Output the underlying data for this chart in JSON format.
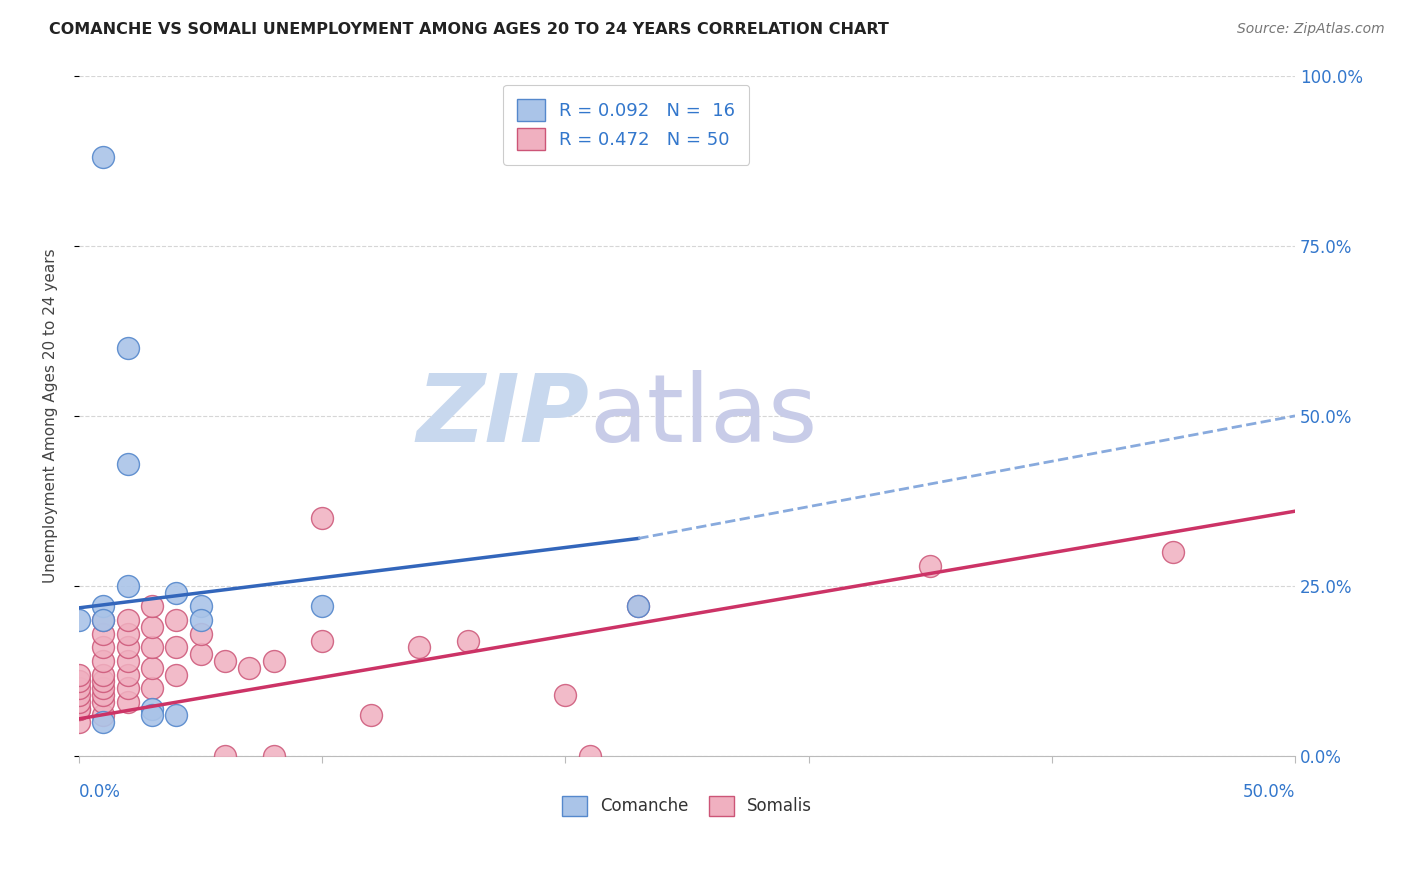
{
  "title": "COMANCHE VS SOMALI UNEMPLOYMENT AMONG AGES 20 TO 24 YEARS CORRELATION CHART",
  "source": "Source: ZipAtlas.com",
  "ylabel": "Unemployment Among Ages 20 to 24 years",
  "xlim": [
    0.0,
    0.5
  ],
  "ylim": [
    0.0,
    1.0
  ],
  "yticks": [
    0.0,
    0.25,
    0.5,
    0.75,
    1.0
  ],
  "ytick_labels": [
    "0.0%",
    "25.0%",
    "50.0%",
    "75.0%",
    "100.0%"
  ],
  "xticks": [
    0.0,
    0.1,
    0.2,
    0.3,
    0.4,
    0.5
  ],
  "legend_comanche_R": "R = 0.092",
  "legend_comanche_N": "N =  16",
  "legend_somali_R": "R = 0.472",
  "legend_somali_N": "N = 50",
  "comanche_color": "#aac4e8",
  "comanche_edge_color": "#5588cc",
  "somali_color": "#f0b0c0",
  "somali_edge_color": "#cc5577",
  "trend_comanche_solid_color": "#3366bb",
  "trend_comanche_dash_color": "#88aadd",
  "trend_somali_color": "#cc3366",
  "watermark_zip_color": "#c8d8ee",
  "watermark_atlas_color": "#c8cce8",
  "right_axis_color": "#3377cc",
  "comanche_points": [
    [
      0.01,
      0.88
    ],
    [
      0.02,
      0.6
    ],
    [
      0.02,
      0.43
    ],
    [
      0.0,
      0.2
    ],
    [
      0.01,
      0.22
    ],
    [
      0.01,
      0.2
    ],
    [
      0.02,
      0.25
    ],
    [
      0.01,
      0.05
    ],
    [
      0.03,
      0.07
    ],
    [
      0.03,
      0.06
    ],
    [
      0.04,
      0.06
    ],
    [
      0.04,
      0.24
    ],
    [
      0.05,
      0.22
    ],
    [
      0.05,
      0.2
    ],
    [
      0.1,
      0.22
    ],
    [
      0.23,
      0.22
    ]
  ],
  "somali_points": [
    [
      0.0,
      0.05
    ],
    [
      0.0,
      0.07
    ],
    [
      0.0,
      0.07
    ],
    [
      0.0,
      0.08
    ],
    [
      0.0,
      0.09
    ],
    [
      0.0,
      0.1
    ],
    [
      0.0,
      0.11
    ],
    [
      0.0,
      0.12
    ],
    [
      0.01,
      0.06
    ],
    [
      0.01,
      0.08
    ],
    [
      0.01,
      0.09
    ],
    [
      0.01,
      0.1
    ],
    [
      0.01,
      0.11
    ],
    [
      0.01,
      0.12
    ],
    [
      0.01,
      0.14
    ],
    [
      0.01,
      0.16
    ],
    [
      0.01,
      0.18
    ],
    [
      0.01,
      0.2
    ],
    [
      0.02,
      0.08
    ],
    [
      0.02,
      0.1
    ],
    [
      0.02,
      0.12
    ],
    [
      0.02,
      0.14
    ],
    [
      0.02,
      0.16
    ],
    [
      0.02,
      0.18
    ],
    [
      0.02,
      0.2
    ],
    [
      0.03,
      0.1
    ],
    [
      0.03,
      0.13
    ],
    [
      0.03,
      0.16
    ],
    [
      0.03,
      0.19
    ],
    [
      0.03,
      0.22
    ],
    [
      0.04,
      0.12
    ],
    [
      0.04,
      0.16
    ],
    [
      0.04,
      0.2
    ],
    [
      0.05,
      0.15
    ],
    [
      0.05,
      0.18
    ],
    [
      0.06,
      0.0
    ],
    [
      0.06,
      0.14
    ],
    [
      0.07,
      0.13
    ],
    [
      0.08,
      0.0
    ],
    [
      0.08,
      0.14
    ],
    [
      0.1,
      0.35
    ],
    [
      0.1,
      0.17
    ],
    [
      0.12,
      0.06
    ],
    [
      0.14,
      0.16
    ],
    [
      0.16,
      0.17
    ],
    [
      0.2,
      0.09
    ],
    [
      0.21,
      0.0
    ],
    [
      0.23,
      0.22
    ],
    [
      0.35,
      0.28
    ],
    [
      0.45,
      0.3
    ]
  ],
  "comanche_trend_x0": 0.0,
  "comanche_trend_y0": 0.218,
  "comanche_trend_x1": 0.23,
  "comanche_trend_y1": 0.32,
  "comanche_trend_dash_x0": 0.23,
  "comanche_trend_dash_y0": 0.32,
  "comanche_trend_dash_x1": 0.5,
  "comanche_trend_dash_y1": 0.5,
  "somali_trend_x0": 0.0,
  "somali_trend_y0": 0.055,
  "somali_trend_x1": 0.5,
  "somali_trend_y1": 0.36
}
